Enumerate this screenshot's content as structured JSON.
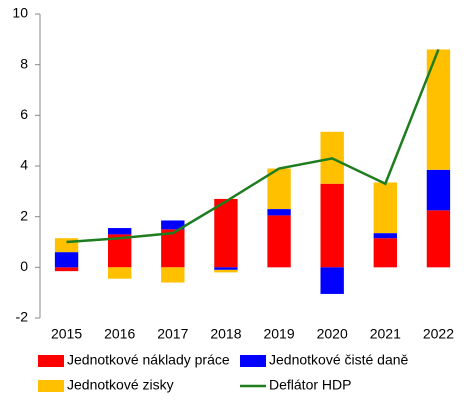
{
  "chart_data": {
    "type": "bar",
    "stacked": true,
    "categories": [
      "2015",
      "2016",
      "2017",
      "2018",
      "2019",
      "2020",
      "2021",
      "2022"
    ],
    "series": [
      {
        "name": "Jednotkové náklady práce",
        "color": "#ff0000",
        "values": [
          -0.15,
          1.3,
          1.5,
          2.7,
          2.05,
          3.3,
          1.15,
          2.25
        ]
      },
      {
        "name": "Jednotkové čisté daně",
        "color": "#0000ff",
        "values": [
          0.6,
          0.25,
          0.35,
          -0.1,
          0.25,
          -1.05,
          0.2,
          1.6
        ]
      },
      {
        "name": "Jednotkové zisky",
        "color": "#ffc000",
        "values": [
          0.55,
          -0.45,
          -0.6,
          -0.1,
          1.6,
          2.05,
          2.0,
          4.75
        ]
      },
      {
        "name": "Deflátor HDP",
        "color": "#1e7d1e",
        "type": "line",
        "values": [
          1.0,
          1.15,
          1.35,
          2.6,
          3.9,
          4.3,
          3.3,
          8.6
        ]
      }
    ],
    "ylim": [
      -2,
      10
    ],
    "yticks": [
      -2,
      0,
      2,
      4,
      6,
      8,
      10
    ]
  }
}
